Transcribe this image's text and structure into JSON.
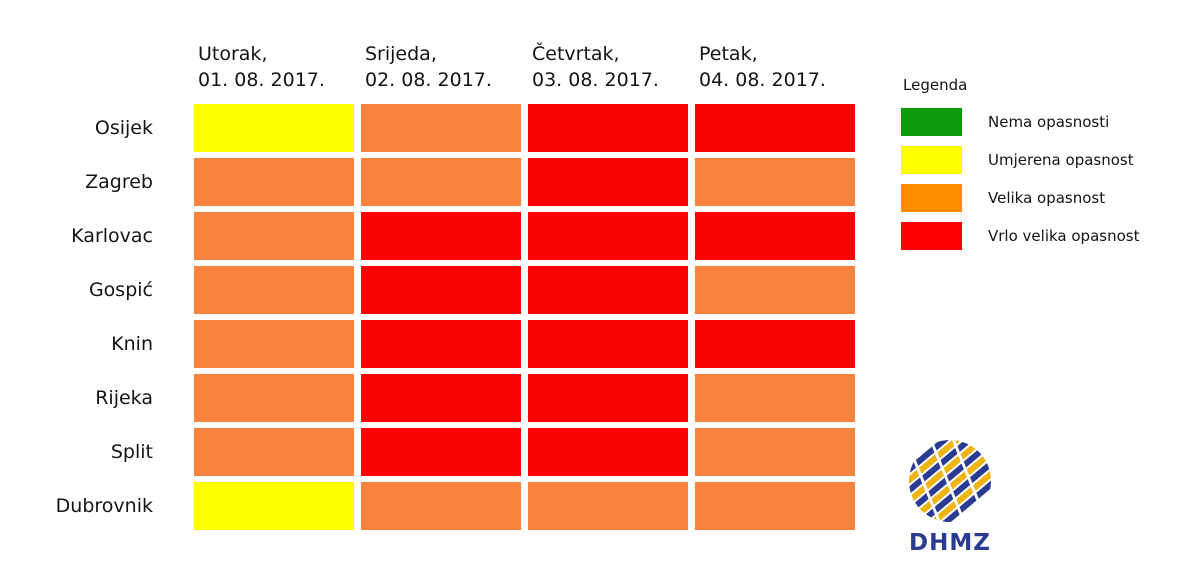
{
  "page": {
    "background": "#FFFFFF"
  },
  "chart_data": {
    "type": "heatmap",
    "title": "",
    "columns": [
      {
        "day": "Utorak,",
        "date": "01. 08. 2017."
      },
      {
        "day": "Srijeda,",
        "date": "02. 08. 2017."
      },
      {
        "day": "Četvrtak,",
        "date": "03. 08. 2017."
      },
      {
        "day": "Petak,",
        "date": "04. 08. 2017."
      }
    ],
    "rows": [
      "Osijek",
      "Zagreb",
      "Karlovac",
      "Gospić",
      "Knin",
      "Rijeka",
      "Split",
      "Dubrovnik"
    ],
    "values": [
      [
        1,
        2,
        3,
        3
      ],
      [
        2,
        2,
        3,
        2
      ],
      [
        2,
        3,
        3,
        3
      ],
      [
        2,
        3,
        3,
        2
      ],
      [
        2,
        3,
        3,
        3
      ],
      [
        2,
        3,
        3,
        2
      ],
      [
        2,
        3,
        3,
        2
      ],
      [
        1,
        2,
        2,
        2
      ]
    ],
    "level_names": {
      "0": "Nema opasnosti",
      "1": "Umjerena opasnost",
      "2": "Velika opasnost",
      "3": "Vrlo velika opasnost"
    },
    "cell_colors": {
      "0": "#0A9A0A",
      "1": "#FFFF00",
      "2": "#FA8340",
      "3": "#F90400"
    },
    "grid": false,
    "legend_position": "right"
  },
  "legend": {
    "title": "Legenda",
    "items": [
      {
        "label": "Nema opasnosti",
        "color": "#0A9A0A"
      },
      {
        "label": "Umjerena opasnost",
        "color": "#FFFF00"
      },
      {
        "label": "Velika opasnost",
        "color": "#FC8D00"
      },
      {
        "label": "Vrlo velika opasnost",
        "color": "#FF0000"
      }
    ]
  },
  "logo": {
    "text": "DHMZ",
    "blue": "#2B3B92",
    "gold": "#EEB411"
  }
}
